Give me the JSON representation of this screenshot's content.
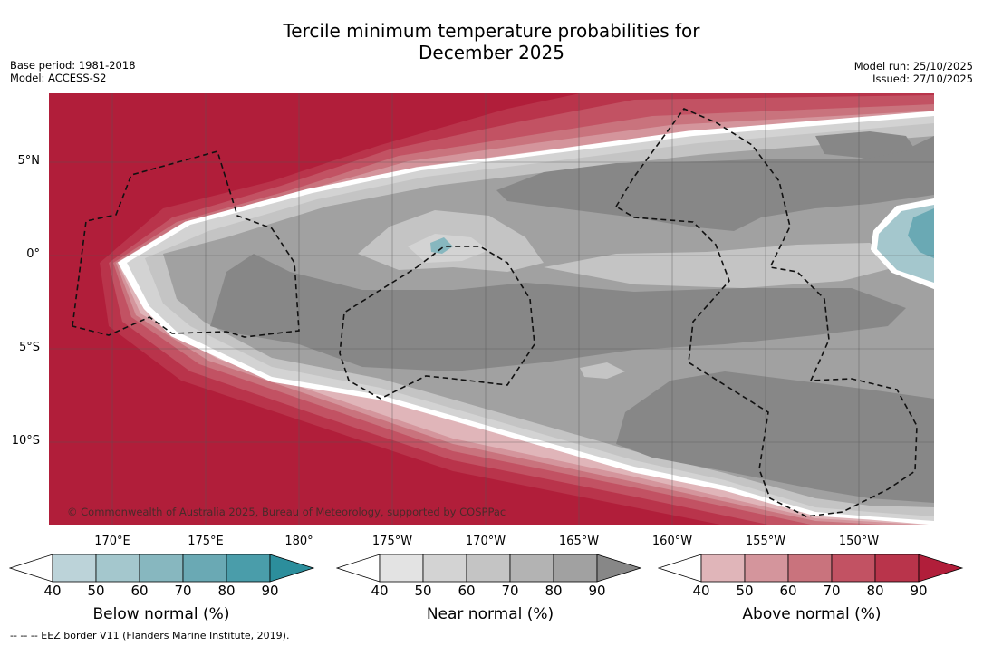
{
  "header": {
    "title_line1": "Tercile minimum temperature probabilities for",
    "title_line2": "December 2025",
    "base_period": "Base period: 1981-2018",
    "model": "Model: ACCESS-S2",
    "model_run": "Model run: 25/10/2025",
    "issued": "Issued: 27/10/2025"
  },
  "map": {
    "lat_labels": [
      "5°N",
      "0°",
      "5°S",
      "10°S"
    ],
    "lon_labels": [
      "170°E",
      "175°E",
      "180°",
      "175°W",
      "170°W",
      "165°W",
      "160°W",
      "155°W",
      "150°W"
    ],
    "copyright": "© Commonwealth of Australia 2025, Bureau of Meteorology, supported by COSPPac"
  },
  "colorbars": [
    {
      "label": "Below normal (%)",
      "ticks": [
        "40",
        "50",
        "60",
        "70",
        "80",
        "90"
      ],
      "colors": [
        "#ffffff",
        "#bcd3d9",
        "#a4c7cd",
        "#87b7bf",
        "#6aa9b4",
        "#4a9daa",
        "#2c8e9c"
      ]
    },
    {
      "label": "Near normal (%)",
      "ticks": [
        "40",
        "50",
        "60",
        "70",
        "80",
        "90"
      ],
      "colors": [
        "#ffffff",
        "#e3e3e3",
        "#d3d3d3",
        "#c4c4c4",
        "#b3b3b3",
        "#a1a1a1",
        "#878787"
      ]
    },
    {
      "label": "Above normal (%)",
      "ticks": [
        "40",
        "50",
        "60",
        "70",
        "80",
        "90"
      ],
      "colors": [
        "#ffffff",
        "#e0b5b9",
        "#d4959c",
        "#c9737d",
        "#c25263",
        "#b9344b",
        "#b11e3a"
      ]
    }
  ],
  "footnote": "--  --  -- EEZ border V11 (Flanders Marine Institute, 2019)."
}
